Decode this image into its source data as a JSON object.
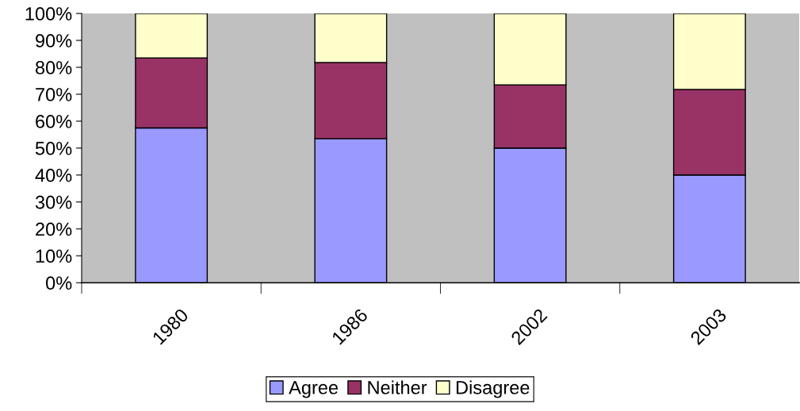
{
  "chart_data": {
    "type": "bar",
    "stacked": true,
    "categories": [
      "1980",
      "1986",
      "2002",
      "2003"
    ],
    "series": [
      {
        "name": "Agree",
        "color": "#9999ff",
        "values": [
          57.5,
          53.5,
          50,
          40
        ]
      },
      {
        "name": "Neither",
        "color": "#993366",
        "values": [
          26,
          28.3,
          23.5,
          31.8
        ]
      },
      {
        "name": "Disagree",
        "color": "#ffffcc",
        "values": [
          16.5,
          18.2,
          26.5,
          28.2
        ]
      }
    ],
    "ylim": [
      0,
      100
    ],
    "yticks": [
      {
        "value": 0,
        "label": "0%"
      },
      {
        "value": 10,
        "label": "10%"
      },
      {
        "value": 20,
        "label": "20%"
      },
      {
        "value": 30,
        "label": "30%"
      },
      {
        "value": 40,
        "label": "40%"
      },
      {
        "value": 50,
        "label": "50%"
      },
      {
        "value": 60,
        "label": "60%"
      },
      {
        "value": 70,
        "label": "70%"
      },
      {
        "value": 80,
        "label": "80%"
      },
      {
        "value": 90,
        "label": "90%"
      },
      {
        "value": 100,
        "label": "100%"
      }
    ],
    "grid": false,
    "legend": "bottom"
  }
}
